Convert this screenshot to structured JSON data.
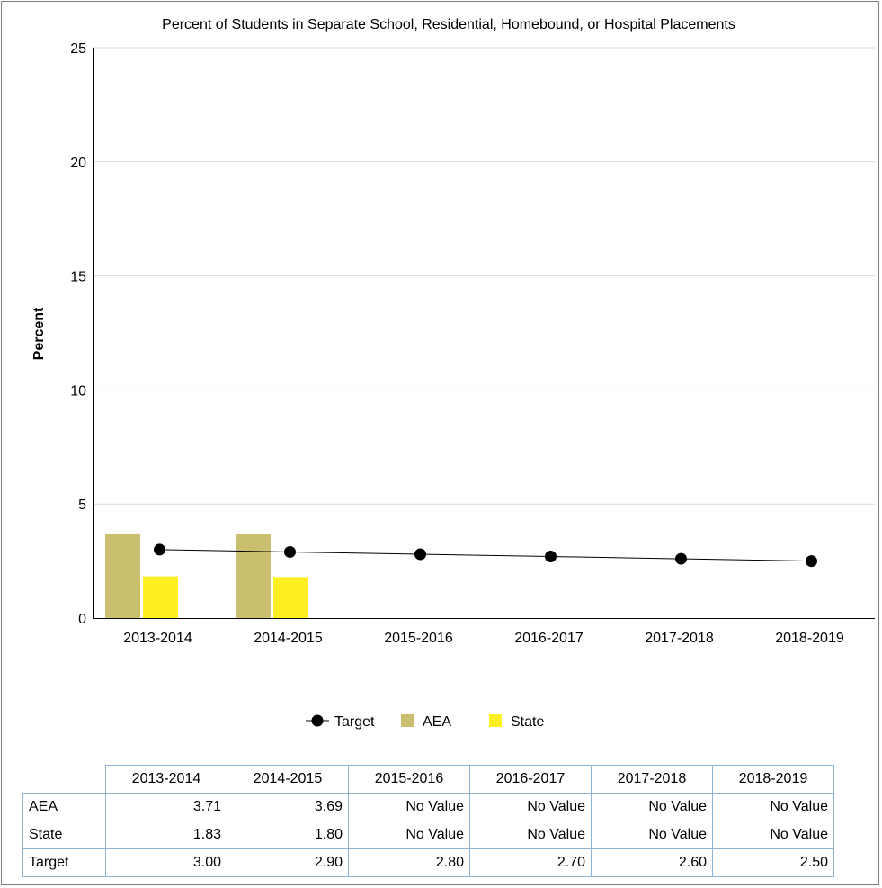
{
  "chart_data": {
    "type": "bar",
    "title": "Percent of Students in Separate School, Residential, Homebound, or Hospital Placements",
    "ylabel": "Percent",
    "xlabel": "",
    "ylim": [
      0,
      25
    ],
    "yticks": [
      0,
      5,
      10,
      15,
      20,
      25
    ],
    "grid": true,
    "legend_position": "bottom",
    "categories": [
      "2013-2014",
      "2014-2015",
      "2015-2016",
      "2016-2017",
      "2017-2018",
      "2018-2019"
    ],
    "series": [
      {
        "name": "AEA",
        "type": "bar",
        "color": "#c9bf6e",
        "values": [
          3.71,
          3.69,
          null,
          null,
          null,
          null
        ]
      },
      {
        "name": "State",
        "type": "bar",
        "color": "#ffee22",
        "values": [
          1.83,
          1.8,
          null,
          null,
          null,
          null
        ]
      },
      {
        "name": "Target",
        "type": "line",
        "color": "#000000",
        "values": [
          3.0,
          2.9,
          2.8,
          2.7,
          2.6,
          2.5
        ]
      }
    ]
  },
  "table": {
    "columns": [
      "2013-2014",
      "2014-2015",
      "2015-2016",
      "2016-2017",
      "2017-2018",
      "2018-2019"
    ],
    "rows": [
      {
        "label": "AEA",
        "cells": [
          "3.71",
          "3.69",
          "No Value",
          "No Value",
          "No Value",
          "No Value"
        ]
      },
      {
        "label": "State",
        "cells": [
          "1.83",
          "1.80",
          "No Value",
          "No Value",
          "No Value",
          "No Value"
        ]
      },
      {
        "label": "Target",
        "cells": [
          "3.00",
          "2.90",
          "2.80",
          "2.70",
          "2.60",
          "2.50"
        ]
      }
    ]
  }
}
